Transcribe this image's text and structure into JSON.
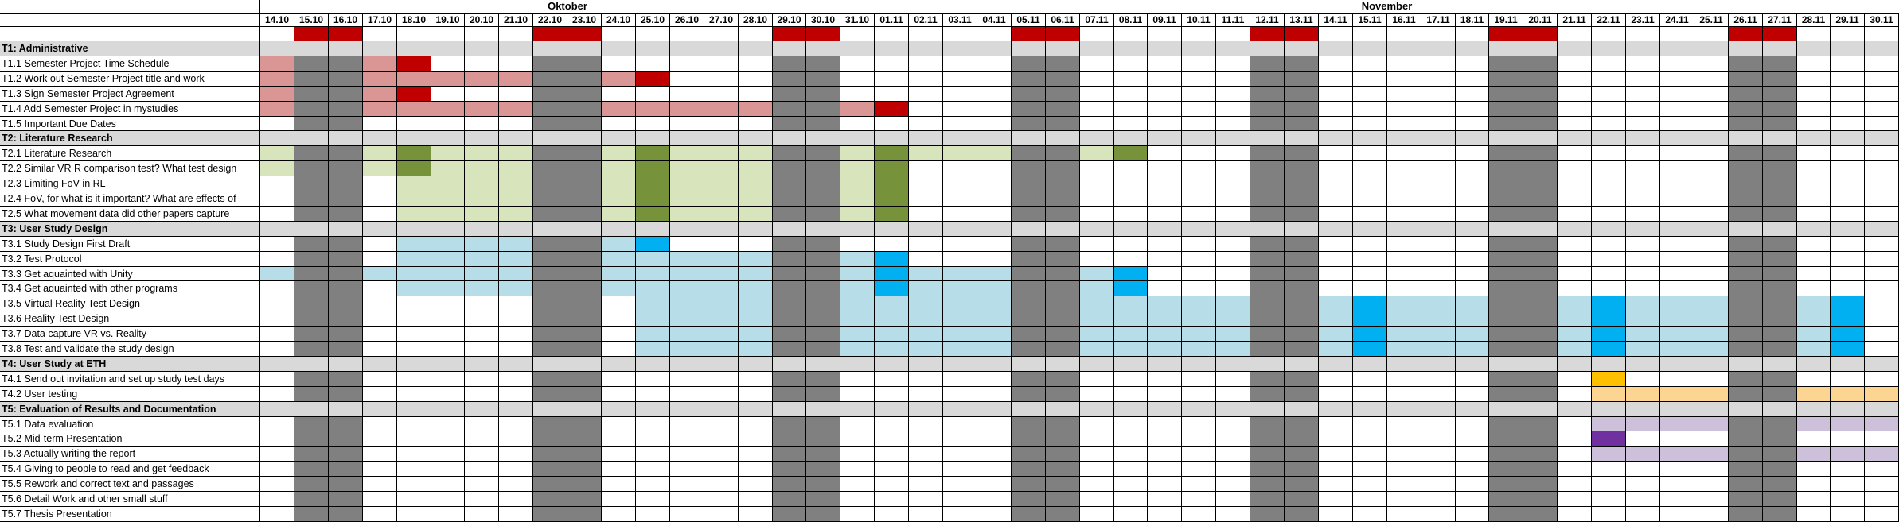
{
  "months": [
    {
      "label": "Oktober",
      "start": 0,
      "span": 18
    },
    {
      "label": "November",
      "start": 18,
      "span": 30
    }
  ],
  "days": [
    "14.10",
    "15.10",
    "16.10",
    "17.10",
    "18.10",
    "19.10",
    "20.10",
    "21.10",
    "22.10",
    "23.10",
    "24.10",
    "25.10",
    "26.10",
    "27.10",
    "28.10",
    "29.10",
    "30.10",
    "31.10",
    "01.11",
    "02.11",
    "03.11",
    "04.11",
    "05.11",
    "06.11",
    "07.11",
    "08.11",
    "09.11",
    "10.11",
    "11.11",
    "12.11",
    "13.11",
    "14.11",
    "15.11",
    "16.11",
    "17.11",
    "18.11",
    "19.11",
    "20.11",
    "21.11",
    "22.11",
    "23.11",
    "24.11",
    "25.11",
    "26.11",
    "27.11",
    "28.11",
    "29.11",
    "30.11"
  ],
  "weekend_days": [
    1,
    2,
    8,
    9,
    15,
    16,
    22,
    23,
    29,
    30,
    36,
    37,
    43,
    44
  ],
  "colors": {
    "weekend": "#808080",
    "weekend_marker": "#c00000",
    "section_band": "#d9d9d9",
    "admin_plan": "#da9694",
    "admin_deadline": "#c00000",
    "lit_plan": "#d8e4bc",
    "lit_milestone": "#76933c",
    "study_plan": "#b7dee8",
    "study_milestone": "#00b0f0",
    "eth_milestone": "#ffc000",
    "eth_plan": "#fcd592",
    "eval_plan": "#ccc0da",
    "eval_milestone": "#7030a0"
  },
  "rows": [
    {
      "type": "section",
      "label": "T1: Administrative"
    },
    {
      "type": "task",
      "label": "T1.1 Semester Project Time Schedule",
      "bars": [
        {
          "c": "admin_plan",
          "s": 0,
          "e": 0
        },
        {
          "c": "admin_plan",
          "s": 3,
          "e": 3
        },
        {
          "c": "admin_deadline",
          "s": 4,
          "e": 4
        }
      ]
    },
    {
      "type": "task",
      "label": "T1.2 Work out Semester Project title and work",
      "bars": [
        {
          "c": "admin_plan",
          "s": 0,
          "e": 0
        },
        {
          "c": "admin_plan",
          "s": 3,
          "e": 7
        },
        {
          "c": "admin_plan",
          "s": 10,
          "e": 10
        },
        {
          "c": "admin_deadline",
          "s": 11,
          "e": 11
        }
      ]
    },
    {
      "type": "task",
      "label": "T1.3 Sign Semester Project Agreement",
      "bars": [
        {
          "c": "admin_plan",
          "s": 0,
          "e": 0
        },
        {
          "c": "admin_plan",
          "s": 3,
          "e": 3
        },
        {
          "c": "admin_deadline",
          "s": 4,
          "e": 4
        }
      ]
    },
    {
      "type": "task",
      "label": "T1.4 Add Semester Project in mystudies",
      "bars": [
        {
          "c": "admin_plan",
          "s": 0,
          "e": 0
        },
        {
          "c": "admin_plan",
          "s": 3,
          "e": 7
        },
        {
          "c": "admin_plan",
          "s": 10,
          "e": 14
        },
        {
          "c": "admin_plan",
          "s": 17,
          "e": 17
        },
        {
          "c": "admin_deadline",
          "s": 18,
          "e": 18
        }
      ]
    },
    {
      "type": "task",
      "label": "T1.5 Important Due Dates",
      "bars": []
    },
    {
      "type": "section",
      "label": "T2: Literature Research"
    },
    {
      "type": "task",
      "label": "T2.1 Literature Research",
      "bars": [
        {
          "c": "lit_plan",
          "s": 0,
          "e": 0
        },
        {
          "c": "lit_plan",
          "s": 3,
          "e": 3
        },
        {
          "c": "lit_milestone",
          "s": 4,
          "e": 4
        },
        {
          "c": "lit_plan",
          "s": 5,
          "e": 7
        },
        {
          "c": "lit_plan",
          "s": 10,
          "e": 10
        },
        {
          "c": "lit_milestone",
          "s": 11,
          "e": 11
        },
        {
          "c": "lit_plan",
          "s": 12,
          "e": 14
        },
        {
          "c": "lit_plan",
          "s": 17,
          "e": 17
        },
        {
          "c": "lit_milestone",
          "s": 18,
          "e": 18
        },
        {
          "c": "lit_plan",
          "s": 19,
          "e": 21
        },
        {
          "c": "lit_plan",
          "s": 24,
          "e": 24
        },
        {
          "c": "lit_milestone",
          "s": 25,
          "e": 25
        }
      ]
    },
    {
      "type": "task",
      "label": "T2.2 Similar VR R comparison test? What test design",
      "bars": [
        {
          "c": "lit_plan",
          "s": 0,
          "e": 0
        },
        {
          "c": "lit_plan",
          "s": 3,
          "e": 3
        },
        {
          "c": "lit_milestone",
          "s": 4,
          "e": 4
        },
        {
          "c": "lit_plan",
          "s": 5,
          "e": 7
        },
        {
          "c": "lit_plan",
          "s": 10,
          "e": 10
        },
        {
          "c": "lit_milestone",
          "s": 11,
          "e": 11
        },
        {
          "c": "lit_plan",
          "s": 12,
          "e": 14
        },
        {
          "c": "lit_plan",
          "s": 17,
          "e": 17
        },
        {
          "c": "lit_milestone",
          "s": 18,
          "e": 18
        }
      ]
    },
    {
      "type": "task",
      "label": "T2.3 Limiting FoV in RL",
      "bars": [
        {
          "c": "lit_plan",
          "s": 4,
          "e": 7
        },
        {
          "c": "lit_plan",
          "s": 10,
          "e": 10
        },
        {
          "c": "lit_milestone",
          "s": 11,
          "e": 11
        },
        {
          "c": "lit_plan",
          "s": 12,
          "e": 14
        },
        {
          "c": "lit_plan",
          "s": 17,
          "e": 17
        },
        {
          "c": "lit_milestone",
          "s": 18,
          "e": 18
        }
      ]
    },
    {
      "type": "task",
      "label": "T2.4 FoV, for what is it important? What are effects of",
      "bars": [
        {
          "c": "lit_plan",
          "s": 4,
          "e": 7
        },
        {
          "c": "lit_plan",
          "s": 10,
          "e": 10
        },
        {
          "c": "lit_milestone",
          "s": 11,
          "e": 11
        },
        {
          "c": "lit_plan",
          "s": 12,
          "e": 14
        },
        {
          "c": "lit_plan",
          "s": 17,
          "e": 17
        },
        {
          "c": "lit_milestone",
          "s": 18,
          "e": 18
        }
      ]
    },
    {
      "type": "task",
      "label": "T2.5 What movement data did other papers capture",
      "bars": [
        {
          "c": "lit_plan",
          "s": 4,
          "e": 7
        },
        {
          "c": "lit_plan",
          "s": 10,
          "e": 10
        },
        {
          "c": "lit_milestone",
          "s": 11,
          "e": 11
        },
        {
          "c": "lit_plan",
          "s": 12,
          "e": 14
        },
        {
          "c": "lit_plan",
          "s": 17,
          "e": 17
        },
        {
          "c": "lit_milestone",
          "s": 18,
          "e": 18
        }
      ]
    },
    {
      "type": "section",
      "label": "T3: User Study Design"
    },
    {
      "type": "task",
      "label": "T3.1 Study Design First Draft",
      "bars": [
        {
          "c": "study_plan",
          "s": 4,
          "e": 7
        },
        {
          "c": "study_plan",
          "s": 10,
          "e": 10
        },
        {
          "c": "study_milestone",
          "s": 11,
          "e": 11
        }
      ]
    },
    {
      "type": "task",
      "label": "T3.2 Test Protocol",
      "bars": [
        {
          "c": "study_plan",
          "s": 4,
          "e": 7
        },
        {
          "c": "study_plan",
          "s": 10,
          "e": 14
        },
        {
          "c": "study_plan",
          "s": 17,
          "e": 17
        },
        {
          "c": "study_milestone",
          "s": 18,
          "e": 18
        }
      ]
    },
    {
      "type": "task",
      "label": "T3.3 Get aquainted with Unity",
      "bars": [
        {
          "c": "study_plan",
          "s": 0,
          "e": 0
        },
        {
          "c": "study_plan",
          "s": 3,
          "e": 7
        },
        {
          "c": "study_plan",
          "s": 10,
          "e": 14
        },
        {
          "c": "study_plan",
          "s": 17,
          "e": 17
        },
        {
          "c": "study_milestone",
          "s": 18,
          "e": 18
        },
        {
          "c": "study_plan",
          "s": 19,
          "e": 21
        },
        {
          "c": "study_plan",
          "s": 24,
          "e": 24
        },
        {
          "c": "study_milestone",
          "s": 25,
          "e": 25
        }
      ]
    },
    {
      "type": "task",
      "label": "T3.4 Get aquainted with other programs",
      "bars": [
        {
          "c": "study_plan",
          "s": 4,
          "e": 7
        },
        {
          "c": "study_plan",
          "s": 10,
          "e": 14
        },
        {
          "c": "study_plan",
          "s": 17,
          "e": 17
        },
        {
          "c": "study_milestone",
          "s": 18,
          "e": 18
        },
        {
          "c": "study_plan",
          "s": 19,
          "e": 21
        },
        {
          "c": "study_plan",
          "s": 24,
          "e": 24
        },
        {
          "c": "study_milestone",
          "s": 25,
          "e": 25
        }
      ]
    },
    {
      "type": "task",
      "label": "T3.5 Virtual Reality Test Design",
      "bars": [
        {
          "c": "study_plan",
          "s": 11,
          "e": 14
        },
        {
          "c": "study_plan",
          "s": 17,
          "e": 21
        },
        {
          "c": "study_plan",
          "s": 24,
          "e": 28
        },
        {
          "c": "study_plan",
          "s": 31,
          "e": 31
        },
        {
          "c": "study_milestone",
          "s": 32,
          "e": 32
        },
        {
          "c": "study_plan",
          "s": 33,
          "e": 35
        },
        {
          "c": "study_plan",
          "s": 38,
          "e": 38
        },
        {
          "c": "study_milestone",
          "s": 39,
          "e": 39
        },
        {
          "c": "study_plan",
          "s": 40,
          "e": 42
        },
        {
          "c": "study_plan",
          "s": 45,
          "e": 45
        },
        {
          "c": "study_milestone",
          "s": 46,
          "e": 46
        }
      ]
    },
    {
      "type": "task",
      "label": "T3.6 Reality Test Design",
      "bars": [
        {
          "c": "study_plan",
          "s": 11,
          "e": 14
        },
        {
          "c": "study_plan",
          "s": 17,
          "e": 21
        },
        {
          "c": "study_plan",
          "s": 24,
          "e": 28
        },
        {
          "c": "study_plan",
          "s": 31,
          "e": 31
        },
        {
          "c": "study_milestone",
          "s": 32,
          "e": 32
        },
        {
          "c": "study_plan",
          "s": 33,
          "e": 35
        },
        {
          "c": "study_plan",
          "s": 38,
          "e": 38
        },
        {
          "c": "study_milestone",
          "s": 39,
          "e": 39
        },
        {
          "c": "study_plan",
          "s": 40,
          "e": 42
        },
        {
          "c": "study_plan",
          "s": 45,
          "e": 45
        },
        {
          "c": "study_milestone",
          "s": 46,
          "e": 46
        }
      ]
    },
    {
      "type": "task",
      "label": "T3.7 Data capture VR vs. Reality",
      "bars": [
        {
          "c": "study_plan",
          "s": 11,
          "e": 14
        },
        {
          "c": "study_plan",
          "s": 17,
          "e": 21
        },
        {
          "c": "study_plan",
          "s": 24,
          "e": 28
        },
        {
          "c": "study_plan",
          "s": 31,
          "e": 31
        },
        {
          "c": "study_milestone",
          "s": 32,
          "e": 32
        },
        {
          "c": "study_plan",
          "s": 33,
          "e": 35
        },
        {
          "c": "study_plan",
          "s": 38,
          "e": 38
        },
        {
          "c": "study_milestone",
          "s": 39,
          "e": 39
        },
        {
          "c": "study_plan",
          "s": 40,
          "e": 42
        },
        {
          "c": "study_plan",
          "s": 45,
          "e": 45
        },
        {
          "c": "study_milestone",
          "s": 46,
          "e": 46
        }
      ]
    },
    {
      "type": "task",
      "label": "T3.8 Test and validate the study design",
      "bars": [
        {
          "c": "study_plan",
          "s": 11,
          "e": 14
        },
        {
          "c": "study_plan",
          "s": 17,
          "e": 21
        },
        {
          "c": "study_plan",
          "s": 24,
          "e": 28
        },
        {
          "c": "study_plan",
          "s": 31,
          "e": 31
        },
        {
          "c": "study_milestone",
          "s": 32,
          "e": 32
        },
        {
          "c": "study_plan",
          "s": 33,
          "e": 35
        },
        {
          "c": "study_plan",
          "s": 38,
          "e": 38
        },
        {
          "c": "study_milestone",
          "s": 39,
          "e": 39
        },
        {
          "c": "study_plan",
          "s": 40,
          "e": 42
        },
        {
          "c": "study_plan",
          "s": 45,
          "e": 45
        },
        {
          "c": "study_milestone",
          "s": 46,
          "e": 46
        }
      ]
    },
    {
      "type": "section",
      "label": "T4: User Study at ETH"
    },
    {
      "type": "task",
      "label": "T4.1 Send out invitation and set up study test days",
      "bars": [
        {
          "c": "eth_milestone",
          "s": 39,
          "e": 39
        }
      ]
    },
    {
      "type": "task",
      "label": "T4.2 User testing",
      "bars": [
        {
          "c": "eth_plan",
          "s": 39,
          "e": 42
        },
        {
          "c": "eth_plan",
          "s": 45,
          "e": 47
        }
      ]
    },
    {
      "type": "section",
      "label": "T5: Evaluation of Results and Documentation"
    },
    {
      "type": "task",
      "label": "T5.1 Data evaluation",
      "bars": [
        {
          "c": "eval_plan",
          "s": 39,
          "e": 42
        },
        {
          "c": "eval_plan",
          "s": 45,
          "e": 47
        }
      ]
    },
    {
      "type": "task",
      "label": "T5.2 Mid-term Presentation",
      "bars": [
        {
          "c": "eval_milestone",
          "s": 39,
          "e": 39
        }
      ]
    },
    {
      "type": "task",
      "label": "T5.3 Actually writing the report",
      "bars": [
        {
          "c": "eval_plan",
          "s": 39,
          "e": 42
        },
        {
          "c": "eval_plan",
          "s": 45,
          "e": 47
        }
      ]
    },
    {
      "type": "task",
      "label": "T5.4 Giving to people to read and get feedback",
      "bars": []
    },
    {
      "type": "task",
      "label": "T5.5 Rework and correct text and passages",
      "bars": []
    },
    {
      "type": "task",
      "label": "T5.6 Detail Work and other small stuff",
      "bars": []
    },
    {
      "type": "task",
      "label": "T5.7 Thesis Presentation",
      "bars": []
    }
  ]
}
